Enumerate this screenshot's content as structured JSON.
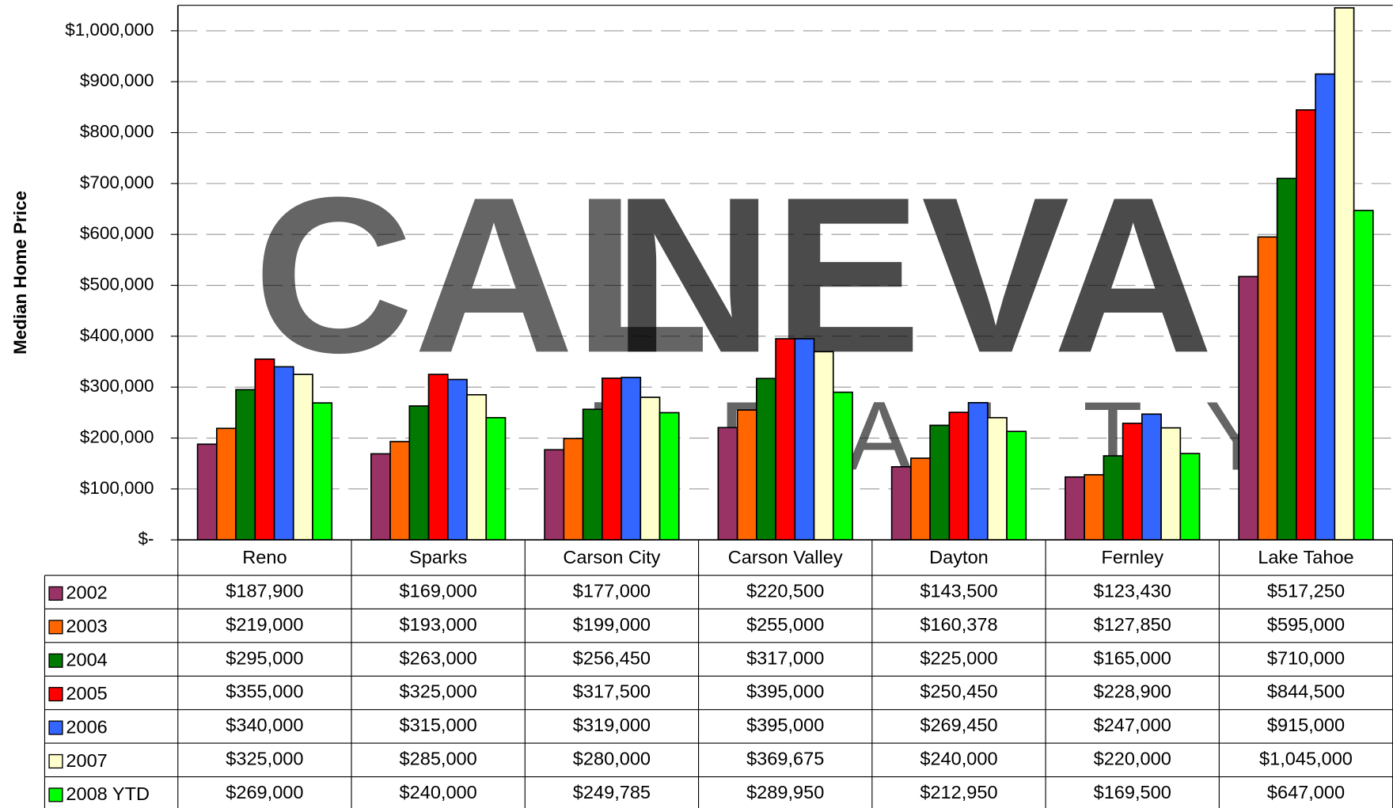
{
  "chart_data": {
    "type": "bar",
    "y_axis_label": "Median Home Price",
    "watermark": [
      "CAL",
      "NEVA",
      "REALTY"
    ],
    "categories": [
      "Reno",
      "Sparks",
      "Carson City",
      "Carson Valley",
      "Dayton",
      "Fernley",
      "Lake Tahoe"
    ],
    "series": [
      {
        "name": "2002",
        "color": "#993366",
        "values": [
          187900,
          169000,
          177000,
          220500,
          143500,
          123430,
          517250
        ],
        "value_labels": [
          "$187,900",
          "$169,000",
          "$177,000",
          "$220,500",
          "$143,500",
          "$123,430",
          "$517,250"
        ]
      },
      {
        "name": "2003",
        "color": "#ff6600",
        "values": [
          219000,
          193000,
          199000,
          255000,
          160378,
          127850,
          595000
        ],
        "value_labels": [
          "$219,000",
          "$193,000",
          "$199,000",
          "$255,000",
          "$160,378",
          "$127,850",
          "$595,000"
        ]
      },
      {
        "name": "2004",
        "color": "#007a00",
        "values": [
          295000,
          263000,
          256450,
          317000,
          225000,
          165000,
          710000
        ],
        "value_labels": [
          "$295,000",
          "$263,000",
          "$256,450",
          "$317,000",
          "$225,000",
          "$165,000",
          "$710,000"
        ]
      },
      {
        "name": "2005",
        "color": "#ff0000",
        "values": [
          355000,
          325000,
          317500,
          395000,
          250450,
          228900,
          844500
        ],
        "value_labels": [
          "$355,000",
          "$325,000",
          "$317,500",
          "$395,000",
          "$250,450",
          "$228,900",
          "$844,500"
        ]
      },
      {
        "name": "2006",
        "color": "#3366ff",
        "values": [
          340000,
          315000,
          319000,
          395000,
          269450,
          247000,
          915000
        ],
        "value_labels": [
          "$340,000",
          "$315,000",
          "$319,000",
          "$395,000",
          "$269,450",
          "$247,000",
          "$915,000"
        ]
      },
      {
        "name": "2007",
        "color": "#ffffcc",
        "values": [
          325000,
          285000,
          280000,
          369675,
          240000,
          220000,
          1045000
        ],
        "value_labels": [
          "$325,000",
          "$285,000",
          "$280,000",
          "$369,675",
          "$240,000",
          "$220,000",
          "$1,045,000"
        ]
      },
      {
        "name": "2008 YTD",
        "color": "#00ff00",
        "values": [
          269000,
          240000,
          249785,
          289950,
          212950,
          169500,
          647000
        ],
        "value_labels": [
          "$269,000",
          "$240,000",
          "$249,785",
          "$289,950",
          "$212,950",
          "$169,500",
          "$647,000"
        ]
      }
    ],
    "ylim": [
      0,
      1050000
    ],
    "yticks": [
      {
        "value": 0,
        "label": "$-"
      },
      {
        "value": 100000,
        "label": "$100,000"
      },
      {
        "value": 200000,
        "label": "$200,000"
      },
      {
        "value": 300000,
        "label": "$300,000"
      },
      {
        "value": 400000,
        "label": "$400,000"
      },
      {
        "value": 500000,
        "label": "$500,000"
      },
      {
        "value": 600000,
        "label": "$600,000"
      },
      {
        "value": 700000,
        "label": "$700,000"
      },
      {
        "value": 800000,
        "label": "$800,000"
      },
      {
        "value": 900000,
        "label": "$900,000"
      },
      {
        "value": 1000000,
        "label": "$1,000,000"
      }
    ],
    "grid": true
  }
}
